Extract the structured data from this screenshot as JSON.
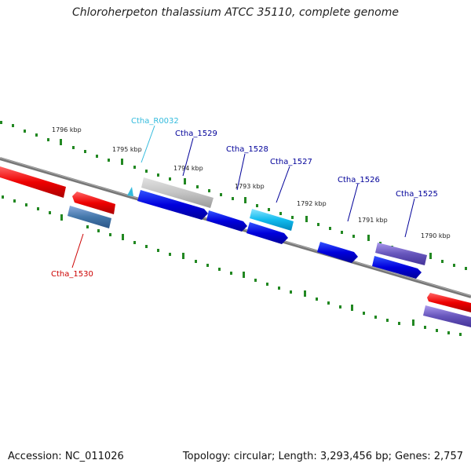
{
  "title": "Chloroherpeton thalassium ATCC 35110, complete genome",
  "accession": "Accession: NC_011026",
  "topology": "Topology: circular; Length: 3,293,456 bp; Genes: 2,757",
  "scale_labels": [
    "1796 kbp",
    "1795 kbp",
    "1794 kbp",
    "1793 kbp",
    "1792 kbp",
    "1791 kbp",
    "1790 kbp"
  ],
  "genes": [
    {
      "name": "Ctha_R0032",
      "color": "#33bbdd"
    },
    {
      "name": "Ctha_1529",
      "color": "#000099"
    },
    {
      "name": "Ctha_1528",
      "color": "#000099"
    },
    {
      "name": "Ctha_1527",
      "color": "#000099"
    },
    {
      "name": "Ctha_1526",
      "color": "#000099"
    },
    {
      "name": "Ctha_1525",
      "color": "#000099"
    },
    {
      "name": "Ctha_1530",
      "color": "#cc0000"
    }
  ],
  "colors": {
    "scale_ticks": "#228822",
    "backbone": "#777777",
    "red_feature": "#ee1111",
    "blue_feature": "#0000dd",
    "cyan_feature": "#22bbee",
    "gray_feature": "#bbbbbb",
    "steel_feature": "#4477aa",
    "purple_feature": "#6655bb"
  }
}
